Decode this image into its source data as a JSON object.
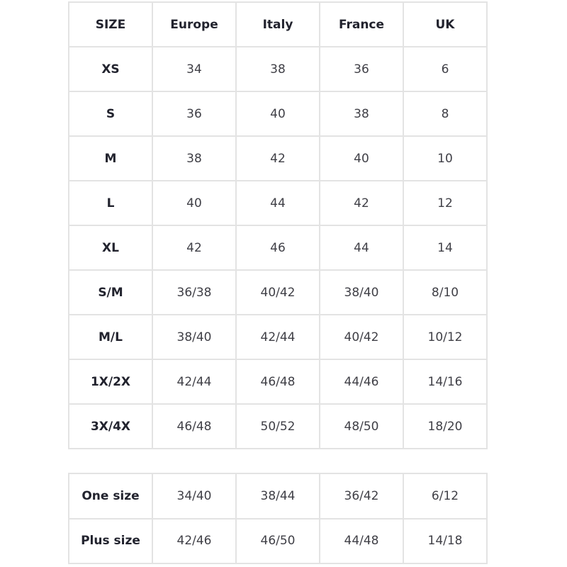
{
  "size_table": {
    "headers": [
      "SIZE",
      "Europe",
      "Italy",
      "France",
      "UK"
    ],
    "rows": [
      [
        "XS",
        "34",
        "38",
        "36",
        "6"
      ],
      [
        "S",
        "36",
        "40",
        "38",
        "8"
      ],
      [
        "M",
        "38",
        "42",
        "40",
        "10"
      ],
      [
        "L",
        "40",
        "44",
        "42",
        "12"
      ],
      [
        "XL",
        "42",
        "46",
        "44",
        "14"
      ],
      [
        "S/M",
        "36/38",
        "40/42",
        "38/40",
        "8/10"
      ],
      [
        "M/L",
        "38/40",
        "42/44",
        "40/42",
        "10/12"
      ],
      [
        "1X/2X",
        "42/44",
        "46/48",
        "44/46",
        "14/16"
      ],
      [
        "3X/4X",
        "46/48",
        "50/52",
        "48/50",
        "18/20"
      ]
    ]
  },
  "one_size_table": {
    "rows": [
      [
        "One size",
        "34/40",
        "38/44",
        "36/42",
        "6/12"
      ],
      [
        "Plus size",
        "42/46",
        "46/50",
        "44/48",
        "14/18"
      ]
    ]
  }
}
